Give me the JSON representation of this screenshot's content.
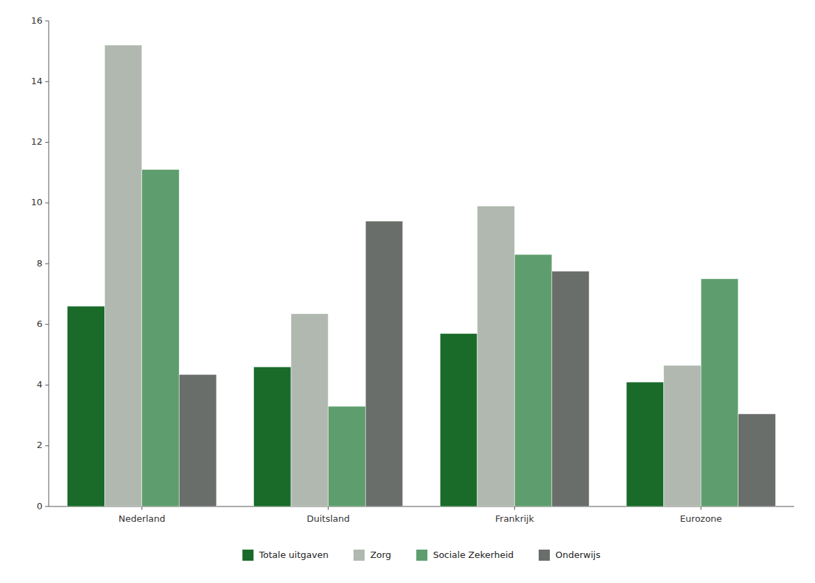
{
  "chart_data": {
    "type": "bar",
    "categories": [
      "Nederland",
      "Duitsland",
      "Frankrijk",
      "Eurozone"
    ],
    "series": [
      {
        "name": "Totale uitgaven",
        "color": "#1a6b2a",
        "values": [
          6.6,
          4.6,
          5.7,
          4.1
        ]
      },
      {
        "name": "Zorg",
        "color": "#b0b8b0",
        "values": [
          15.2,
          6.35,
          9.9,
          4.65
        ]
      },
      {
        "name": "Sociale Zekerheid",
        "color": "#5e9e6e",
        "values": [
          11.1,
          3.3,
          8.3,
          7.5
        ]
      },
      {
        "name": "Onderwijs",
        "color": "#6a6e6a",
        "values": [
          4.35,
          9.4,
          7.75,
          3.05
        ]
      }
    ],
    "ylim": [
      0,
      16
    ],
    "yticks": [
      0,
      2,
      4,
      6,
      8,
      10,
      12,
      14,
      16
    ],
    "grid": false,
    "legend": "bottom"
  }
}
